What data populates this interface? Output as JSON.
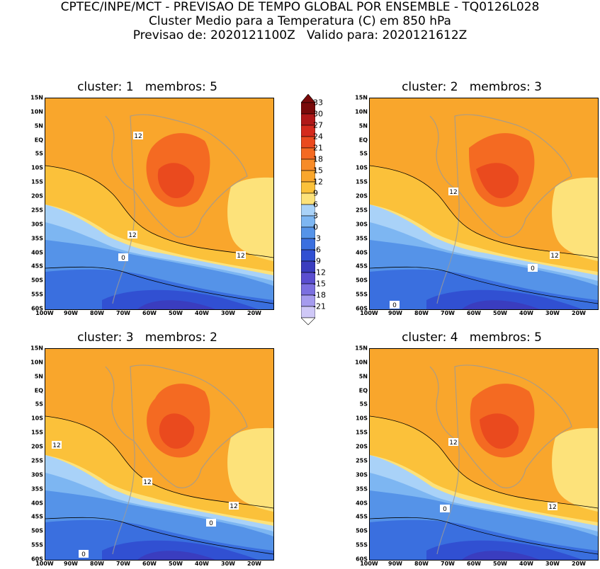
{
  "header": {
    "line1": "CPTEC/INPE/MCT - PREVISAO DE TEMPO GLOBAL POR ENSEMBLE - TQ0126L028",
    "line2": "Cluster Medio para a Temperatura (C) em 850 hPa",
    "line3": "Previsao de: 2020121100Z   Valido para: 2020121612Z"
  },
  "chart_data": {
    "type": "heatmap",
    "variable": "Temperatura (C) em 850 hPa",
    "lat_ticks": [
      "15N",
      "10N",
      "5N",
      "EQ",
      "5S",
      "10S",
      "15S",
      "20S",
      "25S",
      "30S",
      "35S",
      "40S",
      "45S",
      "50S",
      "55S",
      "60S"
    ],
    "lon_ticks": [
      "100W",
      "90W",
      "80W",
      "70W",
      "60W",
      "50W",
      "40W",
      "30W",
      "20W"
    ],
    "colorbar": {
      "levels": [
        "33",
        "30",
        "27",
        "24",
        "21",
        "18",
        "15",
        "12",
        "9",
        "6",
        "3",
        "0",
        "-3",
        "-6",
        "-9",
        "-12",
        "-15",
        "-18",
        "-21"
      ],
      "colors": [
        "#7a0a0a",
        "#b01818",
        "#d42a1c",
        "#ea4a1e",
        "#f46a22",
        "#f78b28",
        "#f9a62c",
        "#fbc13a",
        "#fde27a",
        "#a9d2f8",
        "#7db6f2",
        "#5593e8",
        "#3a6fdf",
        "#3150d2",
        "#3a3dbf",
        "#5a4ed0",
        "#7b6fe0",
        "#a59bee",
        "#cfc8f7"
      ]
    },
    "panels": [
      {
        "title": "cluster: 1   membros: 5",
        "contour_labels": [
          "12",
          "12",
          "12",
          "0"
        ]
      },
      {
        "title": "cluster: 2   membros: 3",
        "contour_labels": [
          "12",
          "12",
          "0",
          "0"
        ]
      },
      {
        "title": "cluster: 3   membros: 2",
        "contour_labels": [
          "12",
          "12",
          "12",
          "0",
          "0"
        ]
      },
      {
        "title": "cluster: 4   membros: 5",
        "contour_labels": [
          "12",
          "12",
          "0"
        ]
      }
    ]
  }
}
